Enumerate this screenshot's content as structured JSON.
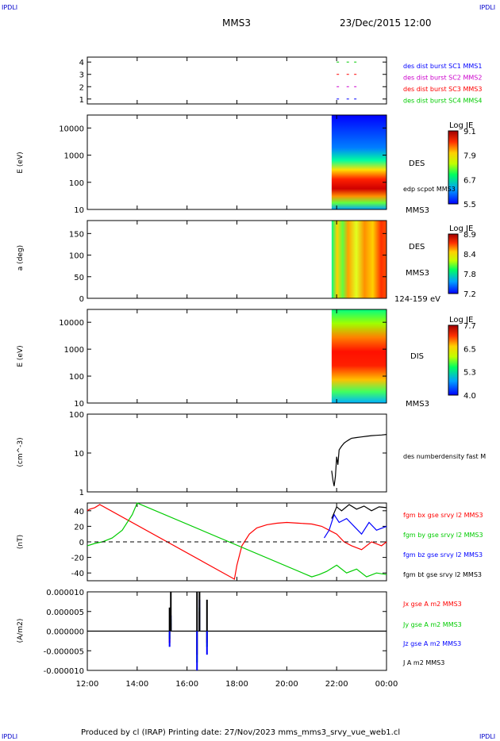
{
  "header": {
    "corner_label": "IPDLI",
    "spacecraft": "MMS3",
    "datetime": "23/Dec/2015 12:00"
  },
  "footer": {
    "text": "Produced by cl (IRAP)   Printing date: 27/Nov/2023   mms_mms3_srvy_vue_web1.cl"
  },
  "colors": {
    "blue": "#0000ff",
    "magenta": "#cc00cc",
    "red": "#ff0000",
    "green": "#00cc00",
    "black": "#000000"
  },
  "time_axis": {
    "ticks": [
      "12:00",
      "14:00",
      "16:00",
      "18:00",
      "20:00",
      "22:00",
      "00:00"
    ],
    "start_hour": 12,
    "end_hour": 24
  },
  "chart_data": [
    {
      "type": "scatter",
      "panel": "burst",
      "y_ticks": [
        "4",
        "3",
        "2",
        "1"
      ],
      "ylim": [
        0.6,
        4.4
      ],
      "legend": [
        "des dist burst SC1 MMS1",
        "des dist burst SC2 MMS2",
        "des dist burst SC3 MMS3",
        "des dist burst SC4 MMS4"
      ],
      "series": [
        {
          "name": "des dist burst SC1 MMS1",
          "y": 1,
          "x": [
            22.0,
            22.4,
            22.7
          ]
        },
        {
          "name": "des dist burst SC2 MMS2",
          "y": 2,
          "x": [
            22.0,
            22.4,
            22.7
          ]
        },
        {
          "name": "des dist burst SC3 MMS3",
          "y": 3,
          "x": [
            22.0,
            22.4,
            22.7
          ]
        },
        {
          "name": "des dist burst SC4 MMS4",
          "y": 4,
          "x": [
            22.0,
            22.4,
            22.7
          ]
        }
      ]
    },
    {
      "type": "heatmap",
      "panel": "des_energy",
      "ylabel": "E (eV)",
      "yscale": "log",
      "y_ticks": [
        "10000",
        "1000",
        "100",
        "10"
      ],
      "ylim": [
        10,
        30000
      ],
      "data_start_hour": 21.8,
      "side_labels": [
        "DES",
        "edp scpot MMS3",
        "MMS3"
      ],
      "colorbar": {
        "title": "Log JE",
        "ticks": [
          "9.1",
          "7.9",
          "6.7",
          "5.5"
        ],
        "range": [
          5.5,
          9.1
        ]
      }
    },
    {
      "type": "heatmap",
      "panel": "des_pitch",
      "ylabel": "a (deg)",
      "y_ticks": [
        "150",
        "100",
        "50",
        "0"
      ],
      "ylim": [
        0,
        180
      ],
      "data_start_hour": 21.8,
      "side_labels": [
        "DES",
        "MMS3",
        "124-159 eV"
      ],
      "colorbar": {
        "title": "Log JE",
        "ticks": [
          "8.9",
          "8.4",
          "7.8",
          "7.2"
        ],
        "range": [
          7.2,
          8.9
        ]
      }
    },
    {
      "type": "heatmap",
      "panel": "dis_energy",
      "ylabel": "E (eV)",
      "yscale": "log",
      "y_ticks": [
        "10000",
        "1000",
        "100",
        "10"
      ],
      "ylim": [
        10,
        30000
      ],
      "data_start_hour": 21.8,
      "side_labels": [
        "DIS",
        "MMS3"
      ],
      "colorbar": {
        "title": "Log JE",
        "ticks": [
          "7.7",
          "6.5",
          "5.3",
          "4.0"
        ],
        "range": [
          4.0,
          7.7
        ]
      }
    },
    {
      "type": "line",
      "panel": "density",
      "ylabel": "(cm^-3)",
      "yscale": "log",
      "y_ticks": [
        "100",
        "10",
        "1"
      ],
      "ylim": [
        1,
        100
      ],
      "legend": [
        "des numberdensity fast M"
      ],
      "series": [
        {
          "name": "des numberdensity fast M",
          "x": [
            21.8,
            21.85,
            21.9,
            21.95,
            22.0,
            22.05,
            22.1,
            22.2,
            22.3,
            22.4,
            22.5,
            22.6,
            22.8,
            23.0,
            23.2,
            23.4,
            23.6,
            23.8,
            24.0
          ],
          "y": [
            3.5,
            2.0,
            1.4,
            2.5,
            8.0,
            5.0,
            12.0,
            15.0,
            18.0,
            20.0,
            22.0,
            24.0,
            25.0,
            26.0,
            27.0,
            28.0,
            28.5,
            29.0,
            30.0
          ]
        }
      ]
    },
    {
      "type": "line",
      "panel": "fgm",
      "ylabel": "(nT)",
      "y_ticks": [
        "40",
        "20",
        "0",
        "-20",
        "-40"
      ],
      "ylim": [
        -50,
        50
      ],
      "legend": [
        "fgm bx gse srvy l2 MMS3",
        "fgm by gse srvy l2 MMS3",
        "fgm bz gse srvy l2 MMS3",
        "fgm bt gse srvy l2 MMS3"
      ],
      "series": [
        {
          "name": "fgm bx gse srvy l2 MMS3",
          "x": [
            12.0,
            12.1,
            12.3,
            12.5,
            17.9,
            18.0,
            18.2,
            18.5,
            18.8,
            19.2,
            19.6,
            20.0,
            20.5,
            21.0,
            21.4,
            21.7,
            22.0,
            22.3,
            22.6,
            23.0,
            23.4,
            23.8,
            24.0
          ],
          "y": [
            40,
            42,
            44,
            48,
            -48,
            -30,
            -5,
            10,
            18,
            22,
            24,
            25,
            24,
            23,
            20,
            15,
            10,
            0,
            -5,
            -10,
            0,
            -5,
            0
          ]
        },
        {
          "name": "fgm by gse srvy l2 MMS3",
          "x": [
            12.0,
            12.3,
            12.6,
            13.0,
            13.4,
            13.8,
            14.0,
            21.0,
            21.3,
            21.6,
            22.0,
            22.4,
            22.8,
            23.2,
            23.6,
            24.0
          ],
          "y": [
            -5,
            -2,
            0,
            5,
            15,
            35,
            50,
            -45,
            -42,
            -38,
            -30,
            -40,
            -35,
            -45,
            -40,
            -42
          ]
        },
        {
          "name": "fgm bz gse srvy l2 MMS3",
          "x": [
            21.5,
            21.7,
            21.9,
            22.1,
            22.4,
            22.7,
            23.0,
            23.3,
            23.6,
            24.0
          ],
          "y": [
            5,
            15,
            35,
            25,
            30,
            20,
            10,
            25,
            15,
            20
          ]
        },
        {
          "name": "fgm bt gse srvy l2 MMS3",
          "x": [
            21.8,
            22.0,
            22.2,
            22.5,
            22.8,
            23.1,
            23.4,
            23.7,
            24.0
          ],
          "y": [
            30,
            45,
            40,
            48,
            42,
            46,
            40,
            45,
            44
          ]
        }
      ]
    },
    {
      "type": "line",
      "panel": "current",
      "ylabel": "(A/m2)",
      "y_ticks": [
        "0.000010",
        "0.000005",
        "0.000000",
        "-0.000005",
        "-0.000010"
      ],
      "ylim": [
        -1e-05,
        1e-05
      ],
      "legend": [
        "Jx gse A m2 MMS3",
        "Jy gse A m2 MMS3",
        "Jz gse A m2 MMS3",
        "J A m2 MMS3"
      ],
      "series": [
        {
          "name": "Jx gse A m2 MMS3",
          "x": [
            15.3,
            15.35,
            16.4,
            16.5,
            16.8
          ],
          "y": [
            -3e-06,
            2e-06,
            -6e-06,
            5e-06,
            -3e-06
          ]
        },
        {
          "name": "Jy gse A m2 MMS3",
          "x": [
            15.3,
            15.35,
            16.4,
            16.5,
            16.8
          ],
          "y": [
            -2e-06,
            3e-06,
            -8e-06,
            6e-06,
            -4e-06
          ]
        },
        {
          "name": "Jz gse A m2 MMS3",
          "x": [
            15.3,
            15.35,
            16.4,
            16.5,
            16.8
          ],
          "y": [
            -4e-06,
            4e-06,
            -1e-05,
            8e-06,
            -6e-06
          ]
        },
        {
          "name": "J A m2 MMS3",
          "x": [
            15.3,
            15.35,
            16.4,
            16.5,
            16.8
          ],
          "y": [
            6e-06,
            1e-05,
            1e-05,
            1e-05,
            8e-06
          ]
        }
      ]
    }
  ]
}
